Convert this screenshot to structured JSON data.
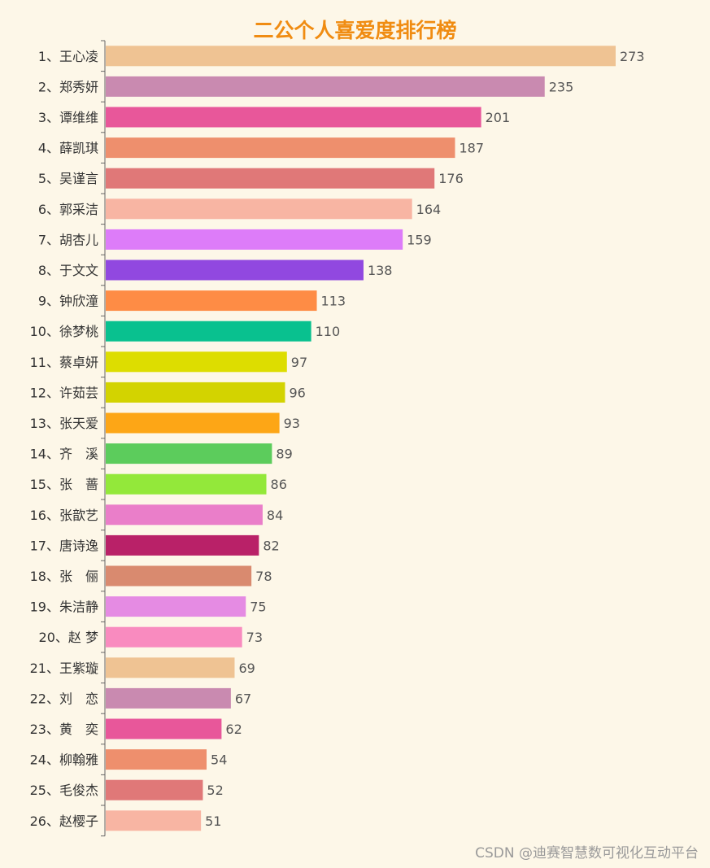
{
  "chart_data": {
    "type": "bar",
    "orientation": "horizontal",
    "title": "二公个人喜爱度排行榜",
    "categories": [
      "1、王心凌",
      "2、郑秀妍",
      "3、谭维维",
      "4、薛凯琪",
      "5、吴谨言",
      "6、郭采洁",
      "7、胡杏儿",
      "8、于文文",
      "9、钟欣潼",
      "10、徐梦桃",
      "11、蔡卓妍",
      "12、许茹芸",
      "13、张天爱",
      "14、齐　溪",
      "15、张　蔷",
      "16、张歆艺",
      "17、唐诗逸",
      "18、张　俪",
      "19、朱洁静",
      "20、赵  梦",
      "21、王紫璇",
      "22、刘　恋",
      "23、黄　奕",
      "24、柳翰雅",
      "25、毛俊杰",
      "26、赵樱子"
    ],
    "values": [
      273,
      235,
      201,
      187,
      176,
      164,
      159,
      138,
      113,
      110,
      97,
      96,
      93,
      89,
      86,
      84,
      82,
      78,
      75,
      73,
      69,
      67,
      62,
      54,
      52,
      51
    ],
    "colors": [
      "#efc393",
      "#c98ab0",
      "#e8579a",
      "#ee8f6d",
      "#e07878",
      "#f8b5a3",
      "#dd7cf9",
      "#9148e0",
      "#fe8c45",
      "#09c18f",
      "#dddd00",
      "#d3d300",
      "#fda616",
      "#5ccc5c",
      "#93e83a",
      "#ea7ec9",
      "#b92168",
      "#d98a6f",
      "#e58be3",
      "#f98bbf",
      "#efc393",
      "#c98ab0",
      "#e8579a",
      "#ee8f6d",
      "#e07878",
      "#f8b5a3"
    ],
    "xlim": [
      0,
      285
    ],
    "grid": false,
    "legend": "none"
  },
  "watermark": "CSDN @迪赛智慧数可视化互动平台"
}
